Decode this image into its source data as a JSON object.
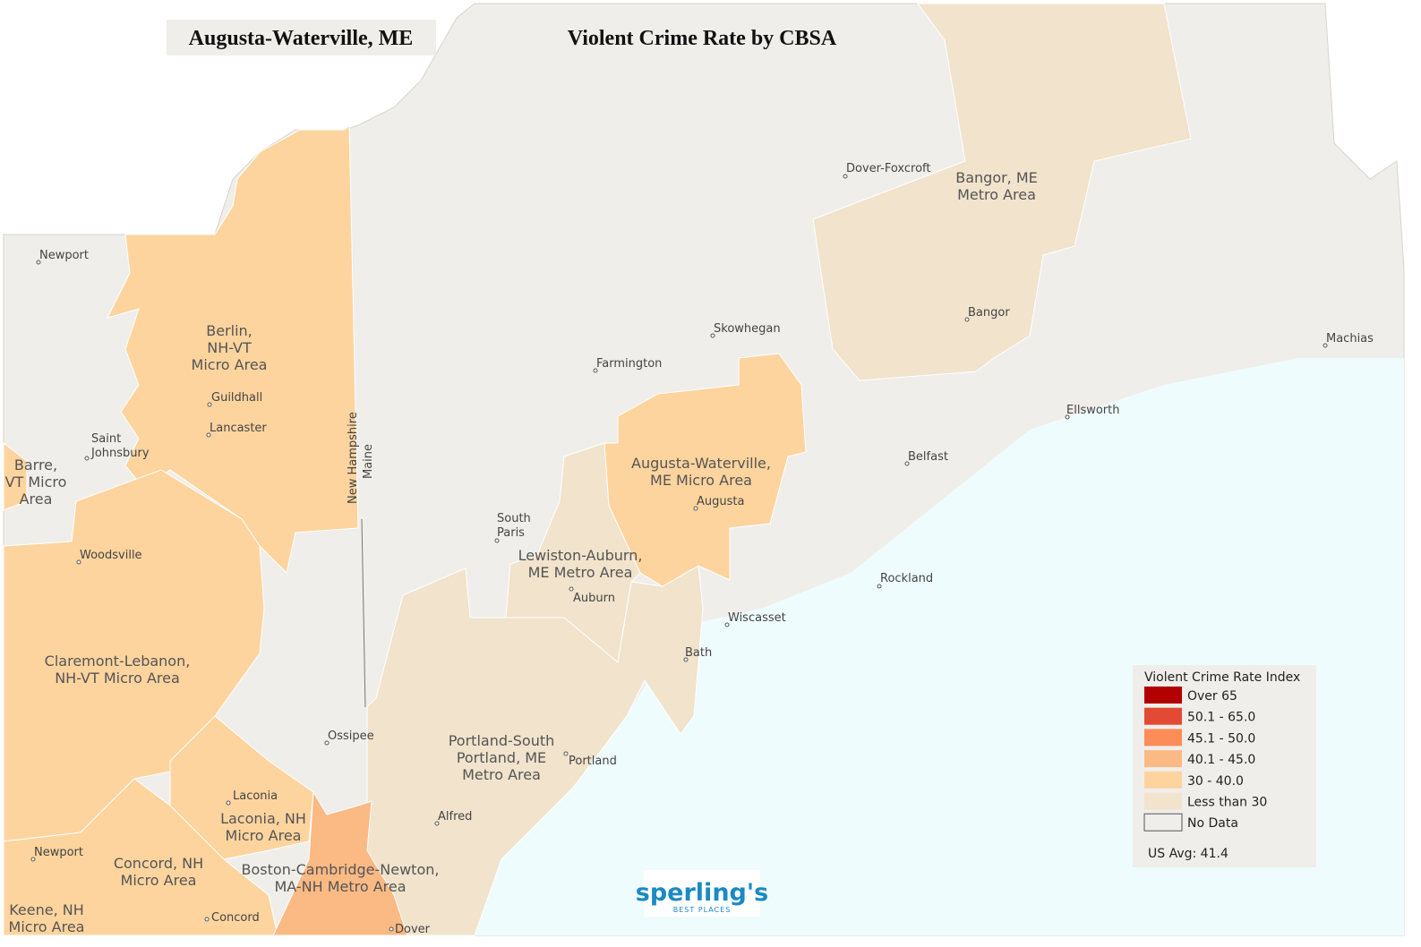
{
  "header": {
    "location": "Augusta-Waterville, ME",
    "title": "Violent Crime Rate by CBSA"
  },
  "regions": [
    {
      "lines": [
        "Berlin,",
        "NH-VT",
        "Micro Area"
      ]
    },
    {
      "lines": [
        "Barre,",
        "VT Micro",
        "Area"
      ]
    },
    {
      "lines": [
        "Augusta-Waterville,",
        "ME Micro Area"
      ]
    },
    {
      "lines": [
        "Lewiston-Auburn,",
        "ME Metro Area"
      ]
    },
    {
      "lines": [
        "Bangor, ME",
        "Metro Area"
      ]
    },
    {
      "lines": [
        "Claremont-Lebanon,",
        "NH-VT Micro Area"
      ]
    },
    {
      "lines": [
        "Portland-South",
        "Portland, ME",
        "Metro Area"
      ]
    },
    {
      "lines": [
        "Laconia, NH",
        "Micro Area"
      ]
    },
    {
      "lines": [
        "Concord, NH",
        "Micro Area"
      ]
    },
    {
      "lines": [
        "Boston-Cambridge-Newton,",
        "MA-NH Metro Area"
      ]
    },
    {
      "lines": [
        "Keene, NH",
        "Micro Area"
      ]
    }
  ],
  "cities": [
    "Newport",
    "Dover-Foxcroft",
    "Bangor",
    "Skowhegan",
    "Farmington",
    "Machias",
    "Ellsworth",
    "Guildhall",
    "Lancaster",
    [
      "Saint",
      "Johnsbury"
    ],
    "Belfast",
    "Augusta",
    [
      "South",
      "Paris"
    ],
    "Woodsville",
    "Auburn",
    "Rockland",
    "Wiscasset",
    "Bath",
    "Ossipee",
    "Portland",
    "Laconia",
    "Alfred",
    "Newport",
    "Concord",
    "Dover"
  ],
  "state_labels": [
    "New Hampshire",
    "Maine"
  ],
  "legend": {
    "title": "Violent Crime Rate Index",
    "items": [
      {
        "label": "Over 65",
        "color": "#b30000"
      },
      {
        "label": "50.1 - 65.0",
        "color": "#e34a33"
      },
      {
        "label": "45.1 - 50.0",
        "color": "#fc8d59"
      },
      {
        "label": "40.1 - 45.0",
        "color": "#fbb984"
      },
      {
        "label": "30 - 40.0",
        "color": "#fdd49e"
      },
      {
        "label": "Less than 30",
        "color": "#f1e3cc"
      },
      {
        "label": "No Data",
        "color": "#f0eeea"
      }
    ],
    "note": "US Avg: 41.4"
  },
  "logo": {
    "name": "sperling's",
    "tagline": "BEST PLACES"
  }
}
